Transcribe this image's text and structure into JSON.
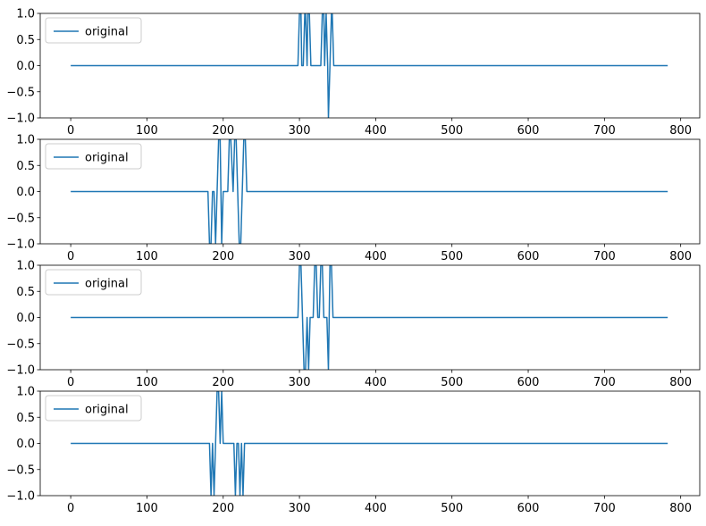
{
  "chart_data": [
    {
      "type": "line",
      "xlim": [
        -40,
        825
      ],
      "ylim": [
        -1.0,
        1.0
      ],
      "xticks": [
        0,
        100,
        200,
        300,
        400,
        500,
        600,
        700,
        800
      ],
      "yticks": [
        -1.0,
        -0.5,
        0.0,
        0.5,
        1.0
      ],
      "ytick_labels": [
        "−1.0",
        "−0.5",
        "0.0",
        "0.5",
        "1.0"
      ],
      "legend_position": "upper-left",
      "series": [
        {
          "name": "original",
          "color": "#1f77b4",
          "x": [
            0,
            298,
            300,
            302,
            303,
            305,
            307,
            308,
            310,
            311,
            313,
            315,
            317,
            318,
            320,
            328,
            330,
            332,
            333,
            335,
            337,
            338,
            340,
            342,
            343,
            345,
            783
          ],
          "y": [
            0,
            0,
            1,
            1,
            0,
            0,
            1,
            1,
            0,
            1,
            1,
            0,
            0,
            0,
            0,
            0,
            1,
            1,
            0,
            1,
            0,
            -1,
            0,
            1,
            1,
            0,
            0
          ]
        }
      ]
    },
    {
      "type": "line",
      "xlim": [
        -40,
        825
      ],
      "ylim": [
        -1.0,
        1.0
      ],
      "xticks": [
        0,
        100,
        200,
        300,
        400,
        500,
        600,
        700,
        800
      ],
      "yticks": [
        -1.0,
        -0.5,
        0.0,
        0.5,
        1.0
      ],
      "ytick_labels": [
        "−1.0",
        "−0.5",
        "0.0",
        "0.5",
        "1.0"
      ],
      "legend_position": "upper-left",
      "series": [
        {
          "name": "original",
          "color": "#1f77b4",
          "x": [
            0,
            180,
            182,
            184,
            186,
            188,
            190,
            192,
            194,
            196,
            198,
            200,
            203,
            206,
            208,
            210,
            213,
            215,
            217,
            219,
            221,
            223,
            225,
            227,
            229,
            231,
            783
          ],
          "y": [
            0,
            0,
            -1,
            -1,
            0,
            0,
            -1,
            0,
            1,
            1,
            -1,
            0,
            0,
            0,
            1,
            1,
            0,
            1,
            1,
            0,
            -1,
            -1,
            0,
            1,
            1,
            0,
            0
          ]
        }
      ]
    },
    {
      "type": "line",
      "xlim": [
        -40,
        825
      ],
      "ylim": [
        -1.0,
        1.0
      ],
      "xticks": [
        0,
        100,
        200,
        300,
        400,
        500,
        600,
        700,
        800
      ],
      "yticks": [
        -1.0,
        -0.5,
        0.0,
        0.5,
        1.0
      ],
      "ytick_labels": [
        "−1.0",
        "−0.5",
        "0.0",
        "0.5",
        "1.0"
      ],
      "legend_position": "upper-left",
      "series": [
        {
          "name": "original",
          "color": "#1f77b4",
          "x": [
            0,
            298,
            300,
            302,
            304,
            306,
            308,
            310,
            312,
            314,
            316,
            318,
            320,
            322,
            324,
            326,
            328,
            330,
            332,
            334,
            336,
            338,
            340,
            342,
            344,
            783
          ],
          "y": [
            0,
            0,
            1,
            1,
            0,
            -1,
            -1,
            0,
            -1,
            0,
            0,
            0,
            1,
            1,
            0,
            0,
            1,
            1,
            0,
            0,
            0,
            -1,
            1,
            1,
            0,
            0
          ]
        }
      ]
    },
    {
      "type": "line",
      "xlim": [
        -40,
        825
      ],
      "ylim": [
        -1.0,
        1.0
      ],
      "xticks": [
        0,
        100,
        200,
        300,
        400,
        500,
        600,
        700,
        800
      ],
      "yticks": [
        -1.0,
        -0.5,
        0.0,
        0.5,
        1.0
      ],
      "ytick_labels": [
        "−1.0",
        "−0.5",
        "0.0",
        "0.5",
        "1.0"
      ],
      "legend_position": "upper-left",
      "series": [
        {
          "name": "original",
          "color": "#1f77b4",
          "x": [
            0,
            182,
            184,
            186,
            188,
            190,
            192,
            194,
            196,
            198,
            200,
            205,
            210,
            214,
            216,
            218,
            220,
            222,
            224,
            226,
            228,
            230,
            783
          ],
          "y": [
            0,
            0,
            -1,
            0,
            -1,
            0,
            1,
            1,
            0,
            1,
            0,
            0,
            0,
            0,
            -1,
            0,
            0,
            -1,
            0,
            -1,
            0,
            0,
            0
          ]
        }
      ]
    }
  ]
}
